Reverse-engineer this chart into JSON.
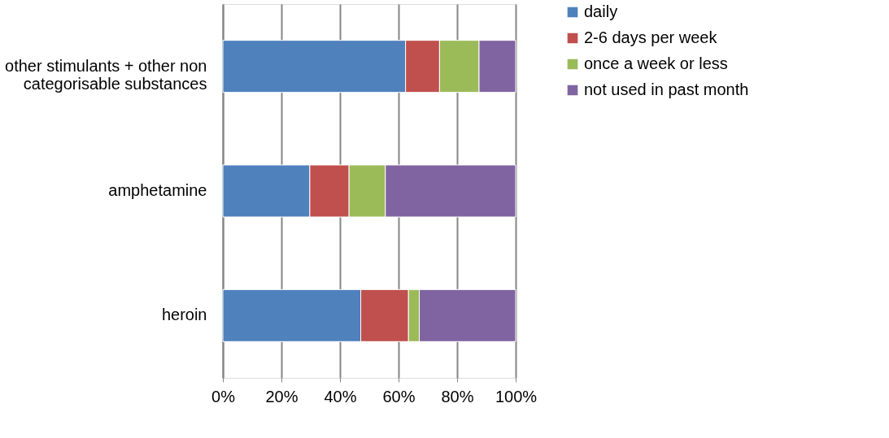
{
  "chart_data": {
    "type": "bar",
    "orientation": "horizontal",
    "stacked": true,
    "categories": [
      "other stimulants + other non categorisable substances",
      "amphetamine",
      "heroin"
    ],
    "series": [
      {
        "name": "daily",
        "color": "#4f81bd",
        "values": [
          62.4,
          29.7,
          47.1
        ]
      },
      {
        "name": "2-6 days per week",
        "color": "#c0504d",
        "values": [
          11.6,
          13.4,
          16.3
        ]
      },
      {
        "name": "once a week or less",
        "color": "#9bbb59",
        "values": [
          13.5,
          12.4,
          3.7
        ]
      },
      {
        "name": "not used in past month",
        "color": "#8064a2",
        "values": [
          12.5,
          44.5,
          32.9
        ]
      }
    ],
    "xlim": [
      0,
      100
    ],
    "xticks": [
      {
        "value": 0,
        "label": "0%"
      },
      {
        "value": 20,
        "label": "20%"
      },
      {
        "value": 40,
        "label": "40%"
      },
      {
        "value": 60,
        "label": "60%"
      },
      {
        "value": 80,
        "label": "80%"
      },
      {
        "value": 100,
        "label": "100%"
      }
    ],
    "grid": "x",
    "legend": "right"
  }
}
